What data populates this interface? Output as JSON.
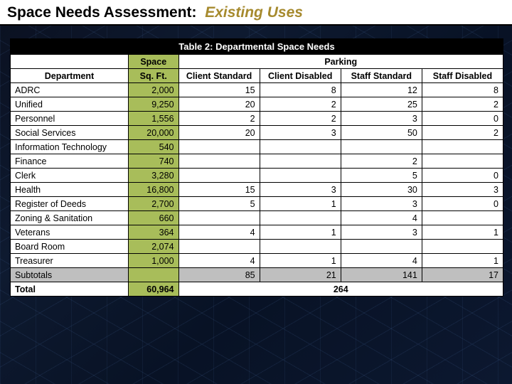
{
  "header": {
    "prefix": "Space Needs Assessment:",
    "accent": "Existing Uses"
  },
  "table": {
    "title": "Table 2: Departmental Space Needs",
    "group_headers": {
      "dept_blank": "",
      "space": "Space",
      "parking": "Parking"
    },
    "columns": {
      "dept": "Department",
      "sqft": "Sq. Ft.",
      "client_std": "Client Standard",
      "client_dis": "Client Disabled",
      "staff_std": "Staff Standard",
      "staff_dis": "Staff Disabled"
    },
    "rows": [
      {
        "dept": "ADRC",
        "sqft": "2,000",
        "cs": "15",
        "cd": "8",
        "ss": "12",
        "sd": "8"
      },
      {
        "dept": "Unified",
        "sqft": "9,250",
        "cs": "20",
        "cd": "2",
        "ss": "25",
        "sd": "2"
      },
      {
        "dept": "Personnel",
        "sqft": "1,556",
        "cs": "2",
        "cd": "2",
        "ss": "3",
        "sd": "0"
      },
      {
        "dept": "Social Services",
        "sqft": "20,000",
        "cs": "20",
        "cd": "3",
        "ss": "50",
        "sd": "2"
      },
      {
        "dept": "Information Technology",
        "sqft": "540",
        "cs": "",
        "cd": "",
        "ss": "",
        "sd": ""
      },
      {
        "dept": "Finance",
        "sqft": "740",
        "cs": "",
        "cd": "",
        "ss": "2",
        "sd": ""
      },
      {
        "dept": "Clerk",
        "sqft": "3,280",
        "cs": "",
        "cd": "",
        "ss": "5",
        "sd": "0"
      },
      {
        "dept": "Health",
        "sqft": "16,800",
        "cs": "15",
        "cd": "3",
        "ss": "30",
        "sd": "3"
      },
      {
        "dept": "Register of Deeds",
        "sqft": "2,700",
        "cs": "5",
        "cd": "1",
        "ss": "3",
        "sd": "0"
      },
      {
        "dept": "Zoning & Sanitation",
        "sqft": "660",
        "cs": "",
        "cd": "",
        "ss": "4",
        "sd": ""
      },
      {
        "dept": "Veterans",
        "sqft": "364",
        "cs": "4",
        "cd": "1",
        "ss": "3",
        "sd": "1"
      },
      {
        "dept": "Board Room",
        "sqft": "2,074",
        "cs": "",
        "cd": "",
        "ss": "",
        "sd": ""
      },
      {
        "dept": "Treasurer",
        "sqft": "1,000",
        "cs": "4",
        "cd": "1",
        "ss": "4",
        "sd": "1"
      }
    ],
    "subtotal": {
      "label": "Subtotals",
      "sqft": "",
      "cs": "85",
      "cd": "21",
      "ss": "141",
      "sd": "17"
    },
    "total": {
      "label": "Total",
      "sqft": "60,964",
      "parking_total": "264"
    }
  },
  "colors": {
    "olive": "#a8bd5a",
    "gray": "#bfbfbf",
    "title_bg": "#000000",
    "title_fg": "#ffffff",
    "accent_text": "#a68a2e",
    "page_bg": "#0a1428"
  }
}
